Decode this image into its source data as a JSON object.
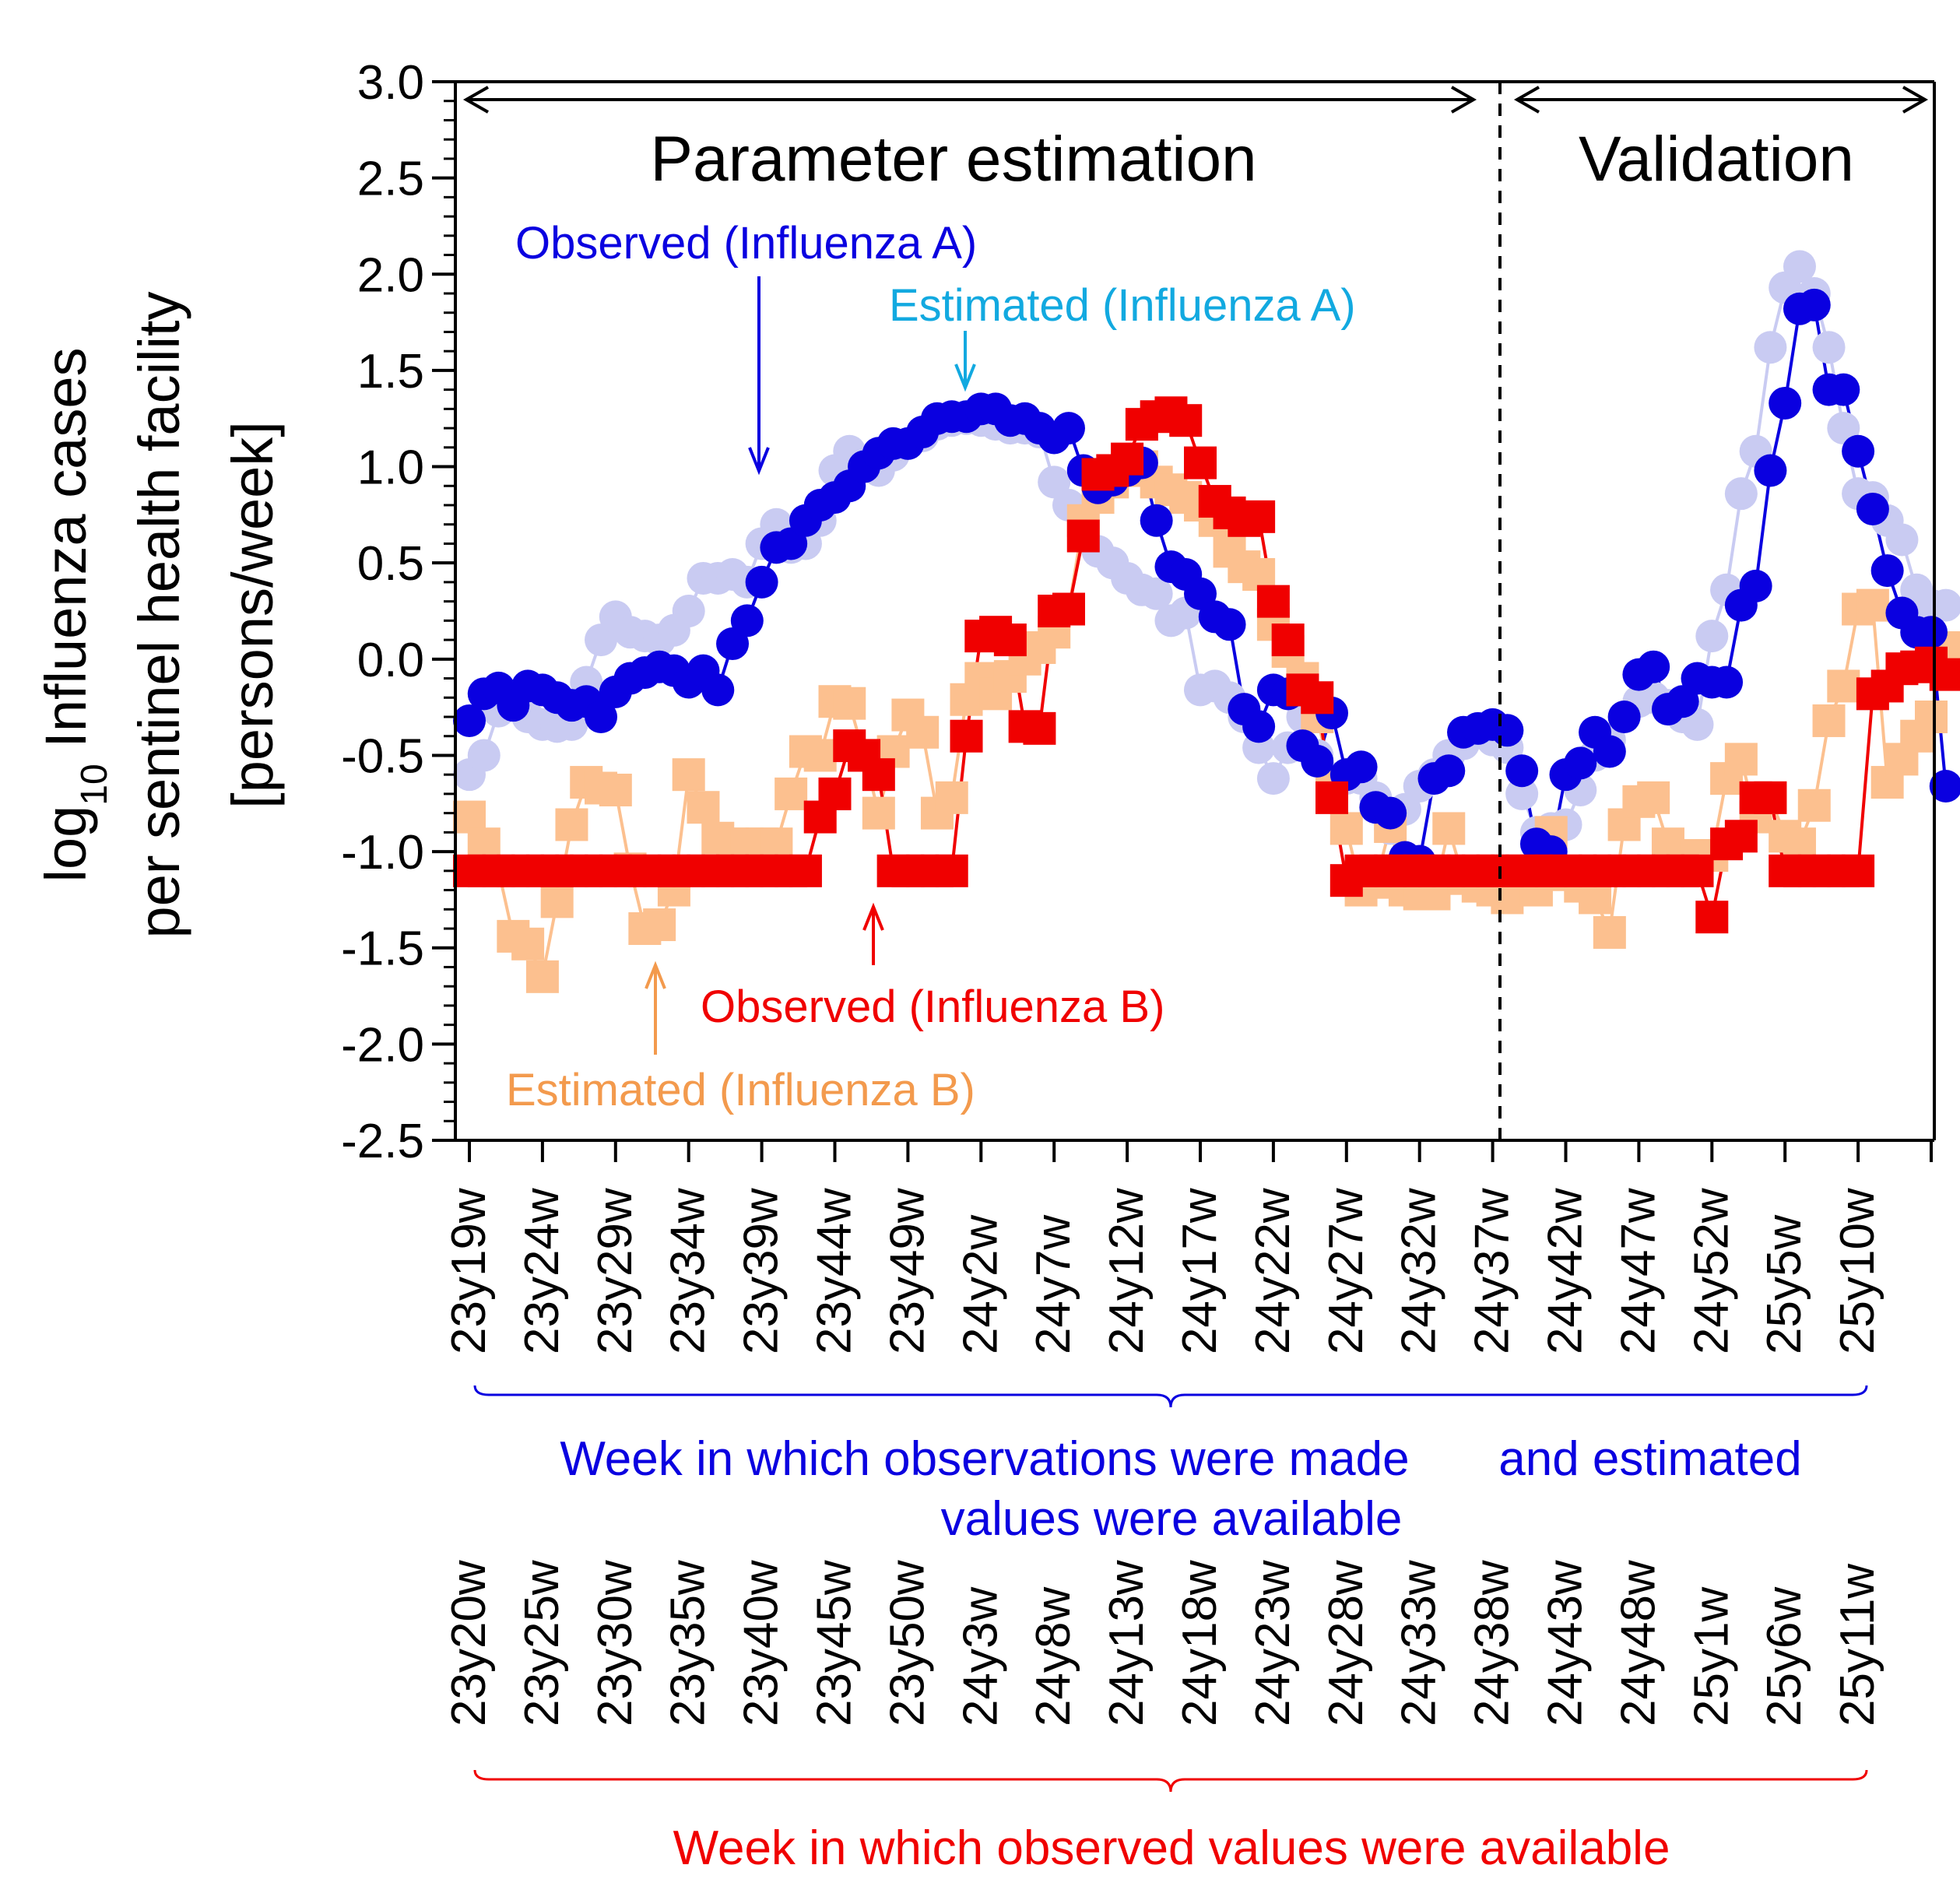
{
  "chart_data": {
    "type": "line",
    "ylabel_prefix": "log",
    "ylabel_sub": "10",
    "ylabel_line1": " Influenza cases",
    "ylabel_line2": "per sentinel health facility",
    "ylabel_line3": "[persons/week]",
    "ylim": [
      -2.5,
      3.0
    ],
    "yticks": [
      "3.0",
      "2.5",
      "2.0",
      "1.5",
      "1.0",
      "0.5",
      "0.0",
      "-0.5",
      "-1.0",
      "-1.5",
      "-2.0",
      "-2.5"
    ],
    "x_count": 102,
    "split_index": 70.5,
    "region_labels": {
      "left": "Parameter estimation",
      "right": "Validation"
    },
    "xticks_obs": [
      "23y19w",
      "23y24w",
      "23y29w",
      "23y34w",
      "23y39w",
      "23y44w",
      "23y49w",
      "24y2w",
      "24y7w",
      "24y12w",
      "24y17w",
      "24y22w",
      "24y27w",
      "24y32w",
      "24y37w",
      "24y42w",
      "24y47w",
      "24y52w",
      "25y5w",
      "25y10w"
    ],
    "xticks_next": [
      "23y20w",
      "23y25w",
      "23y30w",
      "23y35w",
      "23y40w",
      "23y45w",
      "23y50w",
      "24y3w",
      "24y8w",
      "24y13w",
      "24y18w",
      "24y23w",
      "24y28w",
      "24y33w",
      "24y38w",
      "24y43w",
      "24y48w",
      "25y1w",
      "25y6w",
      "25y11w"
    ],
    "bracket1_label_a": "Week in which observations were made",
    "bracket1_label_b": "and estimated",
    "bracket1_label_c": "values were available",
    "bracket2_label": "Week in which observed values were available",
    "annotations": {
      "obsA": "Observed (Influenza A)",
      "estA": "Estimated (Influenza A)",
      "obsB": "Observed (Influenza B)",
      "estB": "Estimated (Influenza B)"
    },
    "colors": {
      "obsA": "#0a00e0",
      "estA": "#c9cbf2",
      "obsB": "#f00000",
      "estB": "#fcc08f",
      "estA_text": "#12a9e0",
      "estB_text": "#f39a4d"
    },
    "series": [
      {
        "name": "Observed (Influenza A)",
        "key": "obsA",
        "marker": "circle",
        "values": [
          -0.32,
          -0.18,
          -0.15,
          -0.24,
          -0.14,
          -0.16,
          -0.2,
          -0.24,
          -0.22,
          -0.3,
          -0.17,
          -0.1,
          -0.07,
          -0.04,
          -0.06,
          -0.12,
          -0.06,
          -0.16,
          0.08,
          0.2,
          0.4,
          0.58,
          0.6,
          0.72,
          0.8,
          0.84,
          0.9,
          1.0,
          1.07,
          1.12,
          1.12,
          1.18,
          1.25,
          1.26,
          1.26,
          1.3,
          1.3,
          1.24,
          1.25,
          1.2,
          1.15,
          1.2,
          0.98,
          0.89,
          0.93,
          0.98,
          1.02,
          0.72,
          0.48,
          0.44,
          0.34,
          0.22,
          0.18,
          -0.26,
          -0.35,
          -0.16,
          -0.18,
          -0.45,
          -0.53,
          -0.28,
          -0.6,
          -0.56,
          -0.77,
          -0.8,
          -1.03,
          -1.05,
          -0.62,
          -0.58,
          -0.38,
          -0.36,
          -0.34,
          -0.37,
          -0.58,
          -0.96,
          -1.0,
          -0.6,
          -0.54,
          -0.38,
          -0.48,
          -0.3,
          -0.08,
          -0.04,
          -0.26,
          -0.22,
          -0.1,
          -0.12,
          -0.12,
          0.28,
          0.38,
          0.98,
          1.33,
          1.82,
          1.84,
          1.4,
          1.4,
          1.08,
          0.78,
          0.46,
          0.24,
          0.14,
          0.14,
          -0.66
        ]
      },
      {
        "name": "Estimated (Influenza A)",
        "key": "estA",
        "marker": "circle",
        "values": [
          -0.6,
          -0.5,
          -0.27,
          -0.22,
          -0.3,
          -0.34,
          -0.35,
          -0.34,
          -0.12,
          0.1,
          0.22,
          0.14,
          0.12,
          0.1,
          0.15,
          0.25,
          0.42,
          0.42,
          0.44,
          0.4,
          0.6,
          0.7,
          0.58,
          0.6,
          0.72,
          0.98,
          1.08,
          1.0,
          0.98,
          1.06,
          1.12,
          1.16,
          1.22,
          1.24,
          1.25,
          1.24,
          1.22,
          1.2,
          1.2,
          1.18,
          0.92,
          0.8,
          0.64,
          0.56,
          0.5,
          0.42,
          0.36,
          0.34,
          0.2,
          0.24,
          -0.16,
          -0.14,
          -0.2,
          -0.3,
          -0.46,
          -0.62,
          -0.46,
          -0.3,
          -0.5,
          -0.62,
          -0.62,
          -0.62,
          -0.72,
          -0.88,
          -0.78,
          -0.66,
          -0.6,
          -0.5,
          -0.44,
          -0.36,
          -0.42,
          -0.46,
          -0.7,
          -0.9,
          -0.88,
          -0.86,
          -0.68,
          -0.5,
          -0.42,
          -0.3,
          -0.22,
          -0.2,
          -0.24,
          -0.3,
          -0.34,
          0.12,
          0.36,
          0.86,
          1.08,
          1.62,
          1.93,
          2.04,
          1.9,
          1.62,
          1.2,
          0.86,
          0.84,
          0.72,
          0.62,
          0.36,
          0.28,
          0.28
        ]
      },
      {
        "name": "Observed (Influenza B)",
        "key": "obsB",
        "marker": "square",
        "values": [
          -1.1,
          -1.1,
          -1.1,
          -1.1,
          -1.1,
          -1.1,
          -1.1,
          -1.1,
          -1.1,
          -1.1,
          -1.1,
          -1.1,
          -1.1,
          -1.1,
          -1.1,
          -1.1,
          -1.1,
          -1.1,
          -1.1,
          -1.1,
          -1.1,
          -1.1,
          -1.1,
          -1.1,
          -0.82,
          -0.7,
          -0.45,
          -0.5,
          -0.6,
          -1.1,
          -1.1,
          -1.1,
          -1.1,
          -1.1,
          -0.4,
          0.12,
          0.14,
          0.1,
          -0.35,
          -0.36,
          0.25,
          0.26,
          0.64,
          0.96,
          0.98,
          1.04,
          1.22,
          1.26,
          1.28,
          1.24,
          1.02,
          0.82,
          0.76,
          0.72,
          0.74,
          0.3,
          0.1,
          -0.16,
          -0.2,
          -0.72,
          -1.15,
          -1.1,
          -1.1,
          -1.1,
          -1.1,
          -1.1,
          -1.1,
          -1.1,
          -1.1,
          -1.1,
          -1.1,
          -1.1,
          -1.1,
          -1.1,
          -1.1,
          -1.1,
          -1.1,
          -1.1,
          -1.1,
          -1.1,
          -1.1,
          -1.1,
          -1.1,
          -1.1,
          -1.1,
          -1.34,
          -0.96,
          -0.92,
          -0.72,
          -0.72,
          -1.1,
          -1.1,
          -1.1,
          -1.1,
          -1.1,
          -1.1,
          -0.18,
          -0.14,
          -0.05,
          -0.04,
          -0.02,
          -0.08
        ]
      },
      {
        "name": "Estimated (Influenza B)",
        "key": "estB",
        "marker": "square",
        "values": [
          -0.82,
          -0.96,
          -1.1,
          -1.44,
          -1.48,
          -1.65,
          -1.26,
          -0.86,
          -0.64,
          -0.67,
          -0.68,
          -1.09,
          -1.4,
          -1.38,
          -1.2,
          -0.6,
          -0.77,
          -0.93,
          -0.96,
          -0.96,
          -0.96,
          -0.96,
          -0.7,
          -0.48,
          -0.5,
          -0.22,
          -0.23,
          -0.5,
          -0.8,
          -0.48,
          -0.29,
          -0.38,
          -0.8,
          -0.72,
          -0.21,
          -0.1,
          -0.18,
          -0.09,
          0.0,
          0.06,
          0.14,
          0.26,
          0.72,
          0.84,
          0.92,
          0.98,
          1.0,
          0.92,
          0.88,
          0.84,
          0.8,
          0.72,
          0.56,
          0.48,
          0.44,
          0.18,
          0.04,
          -0.1,
          -0.3,
          -0.64,
          -0.88,
          -1.2,
          -1.16,
          -0.87,
          -1.2,
          -1.22,
          -1.22,
          -0.88,
          -1.14,
          -1.18,
          -1.2,
          -1.24,
          -1.14,
          -1.2,
          -0.9,
          -1.12,
          -1.18,
          -1.24,
          -1.42,
          -0.86,
          -0.74,
          -0.72,
          -0.96,
          -1.06,
          -1.02,
          -1.02,
          -0.62,
          -0.52,
          -0.82,
          -0.72,
          -0.92,
          -0.96,
          -0.76,
          -0.32,
          -0.14,
          0.26,
          0.28,
          -0.64,
          -0.52,
          -0.4,
          -0.3,
          0.06
        ]
      }
    ]
  }
}
